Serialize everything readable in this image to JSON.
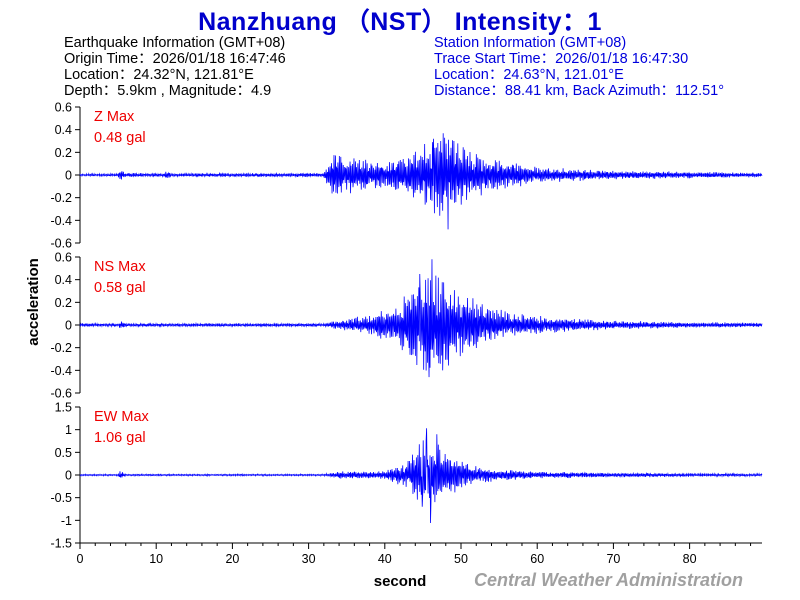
{
  "title": "Nanzhuang （NST） Intensity：1",
  "earthquake_info": {
    "heading": "Earthquake Information  (GMT+08)",
    "origin_time": "Origin Time：2026/01/18 16:47:46",
    "location": "Location：24.32°N, 121.81°E",
    "depth_magnitude": "Depth：5.9km , Magnitude：4.9"
  },
  "station_info": {
    "heading": "Station Information  (GMT+08)",
    "trace_start": "Trace Start Time：2026/01/18 16:47:30",
    "location": "Location：24.63°N, 121.01°E",
    "distance": "Distance：88.41 km, Back Azimuth：112.51°"
  },
  "credit": "Central Weather Administration",
  "colors": {
    "title": "#0000cc",
    "trace": "#0000ff",
    "max_label": "#ee0000",
    "station_text": "#0000dd",
    "credit": "#a0a0a0"
  },
  "chart_data": {
    "type": "line",
    "xlabel": "second",
    "ylabel": "acceleration",
    "xlim": [
      0,
      89.5
    ],
    "x_ticks": [
      0,
      10,
      20,
      30,
      40,
      50,
      60,
      70,
      80
    ],
    "panels": [
      {
        "name": "Z",
        "max_label": "Z Max",
        "max_value": "0.48 gal",
        "ylim": [
          -0.6,
          0.6
        ],
        "y_ticks": [
          0.6,
          0.4,
          0.2,
          0,
          -0.2,
          -0.4,
          -0.6
        ],
        "envelope": [
          [
            0,
            0.012
          ],
          [
            5,
            0.012
          ],
          [
            5.3,
            0.08
          ],
          [
            5.8,
            0.02
          ],
          [
            11,
            0.015
          ],
          [
            11.3,
            0.04
          ],
          [
            12,
            0.015
          ],
          [
            32,
            0.02
          ],
          [
            33,
            0.18
          ],
          [
            36,
            0.16
          ],
          [
            40,
            0.12
          ],
          [
            43,
            0.2
          ],
          [
            46,
            0.32
          ],
          [
            48,
            0.4
          ],
          [
            49.5,
            0.3
          ],
          [
            52,
            0.2
          ],
          [
            55,
            0.14
          ],
          [
            60,
            0.07
          ],
          [
            70,
            0.04
          ],
          [
            80,
            0.03
          ],
          [
            89.5,
            0.02
          ]
        ],
        "peaks": [
          {
            "t": 48.3,
            "v": -0.48
          },
          {
            "t": 46.4,
            "v": 0.32
          },
          {
            "t": 47.2,
            "v": -0.36
          },
          {
            "t": 49.1,
            "v": 0.3
          }
        ]
      },
      {
        "name": "NS",
        "max_label": "NS Max",
        "max_value": "0.58 gal",
        "ylim": [
          -0.6,
          0.6
        ],
        "y_ticks": [
          0.6,
          0.4,
          0.2,
          0,
          -0.2,
          -0.4,
          -0.6
        ],
        "envelope": [
          [
            0,
            0.015
          ],
          [
            5,
            0.015
          ],
          [
            5.3,
            0.04
          ],
          [
            6,
            0.015
          ],
          [
            32,
            0.015
          ],
          [
            34,
            0.05
          ],
          [
            38,
            0.09
          ],
          [
            42,
            0.2
          ],
          [
            44,
            0.4
          ],
          [
            46,
            0.5
          ],
          [
            48,
            0.42
          ],
          [
            50,
            0.3
          ],
          [
            53,
            0.2
          ],
          [
            56,
            0.12
          ],
          [
            62,
            0.07
          ],
          [
            70,
            0.04
          ],
          [
            80,
            0.025
          ],
          [
            89.5,
            0.02
          ]
        ],
        "peaks": [
          {
            "t": 46.2,
            "v": 0.58
          },
          {
            "t": 45.8,
            "v": -0.46
          },
          {
            "t": 44.6,
            "v": 0.45
          },
          {
            "t": 47.6,
            "v": -0.4
          }
        ]
      },
      {
        "name": "EW",
        "max_label": "EW Max",
        "max_value": "1.06 gal",
        "ylim": [
          -1.5,
          1.5
        ],
        "y_ticks": [
          1.5,
          1,
          0.5,
          0,
          -0.5,
          -1,
          -1.5
        ],
        "envelope": [
          [
            0,
            0.02
          ],
          [
            5,
            0.02
          ],
          [
            5.3,
            0.1
          ],
          [
            6,
            0.02
          ],
          [
            32,
            0.02
          ],
          [
            34,
            0.08
          ],
          [
            40,
            0.1
          ],
          [
            43,
            0.3
          ],
          [
            45,
            0.9
          ],
          [
            46.5,
            0.8
          ],
          [
            48,
            0.55
          ],
          [
            50,
            0.3
          ],
          [
            54,
            0.15
          ],
          [
            60,
            0.08
          ],
          [
            70,
            0.05
          ],
          [
            80,
            0.04
          ],
          [
            89.5,
            0.03
          ]
        ],
        "peaks": [
          {
            "t": 45.5,
            "v": 1.03
          },
          {
            "t": 46.0,
            "v": -1.06
          },
          {
            "t": 46.8,
            "v": 0.9
          },
          {
            "t": 44.9,
            "v": -0.7
          }
        ]
      }
    ]
  }
}
